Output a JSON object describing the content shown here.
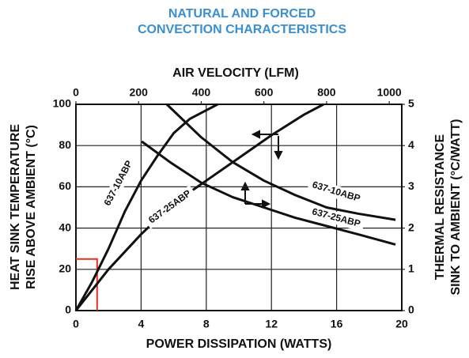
{
  "chart_data": {
    "type": "line",
    "title": [
      "NATURAL AND FORCED",
      "CONVECTION CHARACTERISTICS"
    ],
    "x_label": "POWER DISSIPATION (WATTS)",
    "x2_label": "AIR VELOCITY (LFM)",
    "y_label": [
      "HEAT SINK TEMPERATURE",
      "RISE ABOVE AMBIENT (°C)"
    ],
    "y2_label": [
      "THERMAL RESISTANCE",
      "SINK TO AMBIENT (°C/WATT)"
    ],
    "xlim": [
      0,
      20
    ],
    "xticks": [
      0,
      4,
      8,
      12,
      16,
      20
    ],
    "x2lim": [
      0,
      1040
    ],
    "x2ticks": [
      0,
      200,
      400,
      600,
      800,
      1000
    ],
    "ylim": [
      0,
      100
    ],
    "yticks": [
      0,
      20,
      40,
      60,
      80,
      100
    ],
    "y2lim": [
      0,
      5
    ],
    "y2ticks": [
      0,
      1,
      2,
      3,
      4,
      5
    ],
    "grid": true,
    "series": [
      {
        "name": "637-10ABP",
        "color": "#111111",
        "x": [
          0,
          1,
          2,
          3,
          4,
          5,
          6,
          7,
          8.7
        ],
        "y": [
          0,
          14,
          30,
          48,
          63,
          75,
          86,
          93,
          100
        ]
      },
      {
        "name": "637-25ABP",
        "color": "#111111",
        "x": [
          0,
          2,
          4,
          6,
          8,
          10,
          12,
          14,
          15.2
        ],
        "y": [
          0,
          20,
          37,
          52,
          63,
          74,
          85,
          95,
          100
        ]
      },
      {
        "name": "637-10ABP",
        "color": "#111111",
        "axis": "y2",
        "x": [
          290,
          400,
          500,
          600,
          700,
          800,
          900,
          1020
        ],
        "y": [
          5,
          4.2,
          3.6,
          3.15,
          2.8,
          2.5,
          2.35,
          2.2
        ]
      },
      {
        "name": "637-25ABP",
        "color": "#111111",
        "axis": "y2",
        "x": [
          210,
          300,
          400,
          500,
          600,
          700,
          800,
          900,
          1020
        ],
        "y": [
          4.1,
          3.6,
          3.1,
          2.75,
          2.5,
          2.25,
          2.05,
          1.85,
          1.6
        ]
      }
    ],
    "highlight": {
      "x": 1.3,
      "y": 25,
      "color": "#e03020"
    }
  }
}
